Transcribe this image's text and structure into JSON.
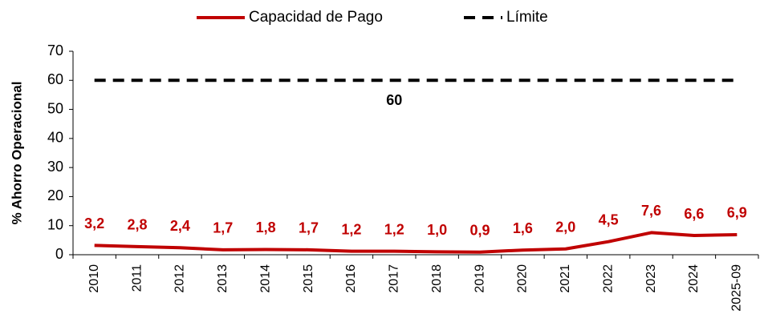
{
  "chart_data": {
    "type": "line",
    "y_label": "% Ahorro Operacional",
    "categories": [
      "2010",
      "2011",
      "2012",
      "2013",
      "2014",
      "2015",
      "2016",
      "2017",
      "2018",
      "2019",
      "2020",
      "2021",
      "2022",
      "2023",
      "2024",
      "2025-09"
    ],
    "series": [
      {
        "name": "Capacidad de Pago",
        "color": "#c00000",
        "style": "solid",
        "values": [
          3.2,
          2.8,
          2.4,
          1.7,
          1.8,
          1.7,
          1.2,
          1.2,
          1.0,
          0.9,
          1.6,
          2.0,
          4.5,
          7.6,
          6.6,
          6.9
        ],
        "value_labels": [
          "3,2",
          "2,8",
          "2,4",
          "1,7",
          "1,8",
          "1,7",
          "1,2",
          "1,2",
          "1,0",
          "0,9",
          "1,6",
          "2,0",
          "4,5",
          "7,6",
          "6,6",
          "6,9"
        ]
      },
      {
        "name": "Límite",
        "color": "#000000",
        "style": "dashed",
        "values": [
          60,
          60,
          60,
          60,
          60,
          60,
          60,
          60,
          60,
          60,
          60,
          60,
          60,
          60,
          60,
          60
        ],
        "value_labels": [
          null,
          null,
          null,
          null,
          null,
          null,
          null,
          "60",
          null,
          null,
          null,
          null,
          null,
          null,
          null,
          null
        ]
      }
    ],
    "ylim": [
      0,
      70
    ],
    "yticks": [
      0,
      10,
      20,
      30,
      40,
      50,
      60,
      70
    ],
    "legend": "top"
  }
}
